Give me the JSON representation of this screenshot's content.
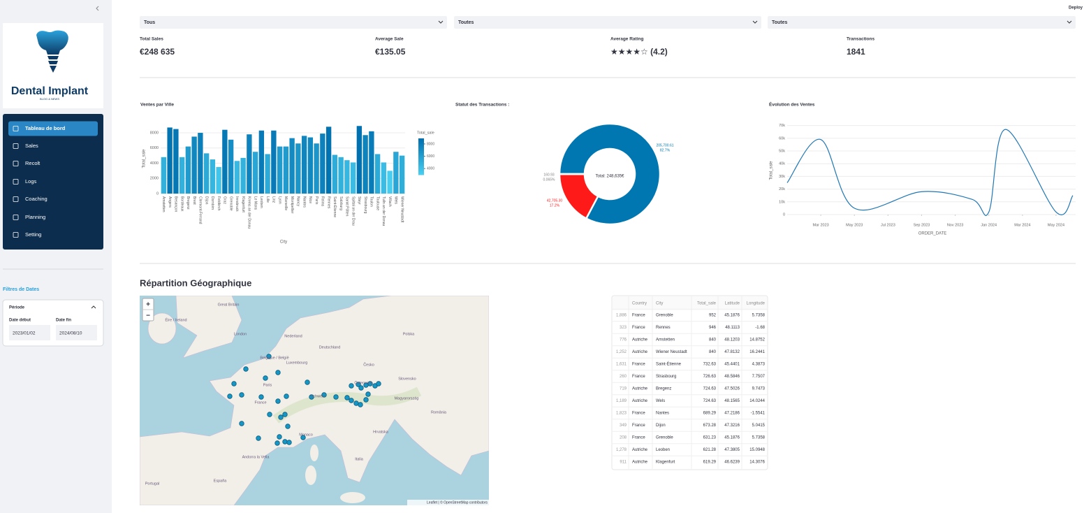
{
  "sidebar": {
    "logo": {
      "title": "Dental Implant",
      "tagline": "BLOG & NEWS"
    },
    "nav": [
      "Tableau de bord",
      "Sales",
      "Recolt",
      "Logs",
      "Coaching",
      "Planning",
      "Setting"
    ],
    "active": 0,
    "filters": {
      "title": "Filtres de Dates",
      "section": "Période",
      "start_label": "Date début",
      "end_label": "Date fin",
      "start": "2023/01/02",
      "end": "2024/08/10"
    }
  },
  "header": {
    "deploy": "Deploy"
  },
  "selects": [
    "Tous",
    "Toutes",
    "Toutes"
  ],
  "metrics": [
    {
      "label": "Total Sales",
      "value": "€248 635"
    },
    {
      "label": "Average Sale",
      "value": "€135.05"
    },
    {
      "label": "Average Rating",
      "value": "★★★★☆ (4.2)"
    },
    {
      "label": "Transactions",
      "value": "1841"
    }
  ],
  "chart_data": [
    {
      "type": "bar",
      "title": "Ventes par Ville",
      "x_label": "City",
      "y_label": "Total_sale",
      "categories": [
        "Amstetten",
        "Angers",
        "Besançon",
        "Bordeaux",
        "Bregenz",
        "Brest",
        "Clermont-Ferrand",
        "Dijon",
        "Dornbirn",
        "Feldkirch",
        "Graz",
        "Grenoble",
        "Innsbruck",
        "Klagenfurt",
        "Krems an der Donau",
        "Le Mans",
        "Leoben",
        "Lille",
        "Linz",
        "Lyon",
        "Marseille",
        "Montpellier",
        "Nancy",
        "Nantes",
        "Nice",
        "Paris",
        "Reims",
        "Rennes",
        "Saint-Étienne",
        "Salzburg",
        "Sankt Pölten",
        "Spittal an der Drau",
        "Steyr",
        "Strasbourg",
        "Toulon",
        "Toulouse",
        "Tulln an der Donau",
        "Villach",
        "Wels",
        "Wiener Neustadt"
      ],
      "values": [
        4800,
        8700,
        8500,
        4800,
        6200,
        7500,
        8000,
        5300,
        4500,
        3500,
        8400,
        7100,
        4300,
        4700,
        7800,
        5500,
        8300,
        5200,
        8300,
        6200,
        6200,
        7300,
        6600,
        7600,
        7400,
        6600,
        7900,
        8800,
        5100,
        4800,
        4400,
        4100,
        8900,
        7700,
        8200,
        5200,
        4100,
        3000,
        5500,
        5000
      ],
      "color_scale": [
        "#47cdf0",
        "#0071b0"
      ],
      "colorbar": {
        "title": "Total_sale",
        "ticks": [
          4000,
          6000,
          8000
        ]
      },
      "ylim": [
        0,
        9200
      ],
      "yticks": [
        0,
        2000,
        4000,
        6000,
        8000
      ],
      "grid": true
    },
    {
      "type": "pie",
      "title": "Statut des Transactions :",
      "center_label": "Total: 248,635€",
      "values": [
        205700.61,
        42705.3,
        160.93
      ],
      "value_labels": [
        "205,700.61",
        "42,705.30",
        "160.93"
      ],
      "percents": [
        82.7,
        17.2,
        0.065
      ],
      "percent_labels": [
        "82.7%",
        "17.2%",
        "0.065%"
      ],
      "colors": [
        "#0077b0",
        "#ff1a1a",
        "#7f7f7f"
      ]
    },
    {
      "type": "line",
      "title": "Évolution des Ventes",
      "x_label": "ORDER_DATE",
      "y_label": "Total_sale",
      "x": [
        "2023-01",
        "2023-03",
        "2023-05",
        "2023-09",
        "2023-12",
        "2024-01",
        "2024-02",
        "2024-05",
        "2024-06"
      ],
      "values": [
        25000,
        59000,
        5000,
        18000,
        12000,
        2000,
        67000,
        2000,
        15000
      ],
      "color": "#1f77b4",
      "xlim": [
        "2023-01",
        "2024-06"
      ],
      "xticks": [
        {
          "value": "2023-03",
          "label": "Mar 2023"
        },
        {
          "value": "2023-05",
          "label": "May 2023"
        },
        {
          "value": "2023-07",
          "label": "Jul 2023"
        },
        {
          "value": "2023-09",
          "label": "Sep 2023"
        },
        {
          "value": "2023-11",
          "label": "Nov 2023"
        },
        {
          "value": "2024-01",
          "label": "Jan 2024"
        },
        {
          "value": "2024-03",
          "label": "Mar 2024"
        },
        {
          "value": "2024-05",
          "label": "May 2024"
        }
      ],
      "ylim": [
        0,
        72000
      ],
      "yticks": [
        0,
        {
          "value": 10000,
          "label": "10k"
        },
        {
          "value": 20000,
          "label": "20k"
        },
        {
          "value": 30000,
          "label": "30k"
        },
        {
          "value": 40000,
          "label": "40k"
        },
        {
          "value": 50000,
          "label": "50k"
        },
        {
          "value": 60000,
          "label": "60k"
        },
        {
          "value": 70000,
          "label": "70k"
        }
      ],
      "grid": true
    }
  ],
  "map": {
    "title": "Répartition Géographique",
    "zoom_in": "+",
    "zoom_out": "−",
    "attribution": "Leaflet | © OpenStreetMap contributors",
    "labels": [
      "Great Britain",
      "Éire / Ireland",
      "London",
      "Nederland",
      "Belgique / België",
      "Luxembourg",
      "Deutschland",
      "Paris",
      "France",
      "Schweiz",
      "Österreich",
      "Česko",
      "Polska",
      "Slovensko",
      "Magyarország",
      "România",
      "Hrvatska",
      "Italia",
      "Monaco",
      "Andorra la Vella",
      "España",
      "Portugal"
    ]
  },
  "table": {
    "columns": [
      "Country",
      "City",
      "Total_sale",
      "Latitude",
      "Longitude"
    ],
    "rows": [
      [
        "1,886",
        "France",
        "Grenoble",
        "952",
        "45.1876",
        "5.7358"
      ],
      [
        "323",
        "France",
        "Rennes",
        "946",
        "48.1113",
        "-1.68"
      ],
      [
        "776",
        "Autriche",
        "Amstetten",
        "840",
        "48.1203",
        "14.8752"
      ],
      [
        "1,252",
        "Autriche",
        "Wiener Neustadt",
        "840",
        "47.8132",
        "16.2441"
      ],
      [
        "1,631",
        "France",
        "Saint-Étienne",
        "732.63",
        "45.4401",
        "4.3873"
      ],
      [
        "260",
        "France",
        "Strasbourg",
        "726.63",
        "48.5846",
        "7.7507"
      ],
      [
        "719",
        "Autriche",
        "Bregenz",
        "724.63",
        "47.5026",
        "9.7473"
      ],
      [
        "1,189",
        "Autriche",
        "Wels",
        "724.63",
        "48.1565",
        "14.0244"
      ],
      [
        "1,823",
        "France",
        "Nantes",
        "689.29",
        "47.2186",
        "-1.5541"
      ],
      [
        "349",
        "France",
        "Dijon",
        "673.28",
        "47.3216",
        "5.0415"
      ],
      [
        "208",
        "France",
        "Grenoble",
        "631.23",
        "45.1876",
        "5.7358"
      ],
      [
        "1,278",
        "Autriche",
        "Leoben",
        "621.28",
        "47.3805",
        "15.0948"
      ],
      [
        "911",
        "Autriche",
        "Klagenfurt",
        "619.29",
        "46.6239",
        "14.3076"
      ]
    ]
  }
}
